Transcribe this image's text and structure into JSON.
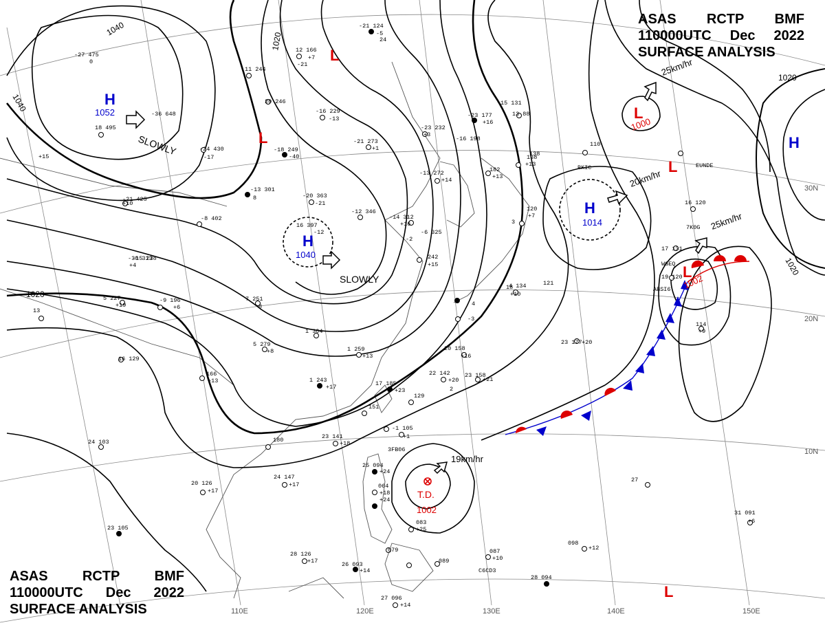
{
  "header": {
    "center1": "ASAS",
    "center2": "RCTP",
    "center3": "BMF",
    "time": "110000UTC",
    "month": "Dec",
    "year": "2022",
    "title": "SURFACE ANALYSIS"
  },
  "colors": {
    "high": "#0000cc",
    "low": "#dd0000",
    "isobar": "#000000",
    "coast": "#555555",
    "grid": "#888888"
  },
  "isobar_labels": {
    "a": "1040",
    "b": "1040",
    "c": "1020",
    "d": "1020",
    "e": "1020",
    "f": "1020"
  },
  "lat_labels": {
    "l30": "30N",
    "l20": "20N",
    "l10": "10N"
  },
  "lon_labels": {
    "e110": "110E",
    "e120": "120E",
    "e130": "130E",
    "e140": "140E",
    "e150": "150E"
  },
  "systems": {
    "high_mongolia": {
      "symbol": "H",
      "pressure": "1052"
    },
    "high_china": {
      "symbol": "H",
      "pressure": "1040"
    },
    "high_pacific": {
      "symbol": "H",
      "pressure": "1014"
    },
    "high_east": {
      "symbol": "H"
    },
    "low_north_a": {
      "symbol": "L"
    },
    "low_north_b": {
      "symbol": "L"
    },
    "low_ne": {
      "symbol": "L",
      "pressure": "1000"
    },
    "low_east": {
      "symbol": "L"
    },
    "low_front": {
      "symbol": "L",
      "pressure": "1002"
    },
    "low_south": {
      "symbol": "L"
    },
    "td": {
      "symbol": "T.D.",
      "pressure": "1002"
    }
  },
  "motion": {
    "m1": "SLOWLY",
    "m2": "SLOWLY",
    "m3": "25km/hr",
    "m4": "20km/hr",
    "m5": "25km/hr",
    "m6": "19km/hr"
  },
  "stations": [
    "-21 124",
    "-5",
    "12 166",
    "+7",
    "-21",
    "0",
    "11 244",
    "20 246",
    "-16 229",
    "-13",
    "-23 232",
    "+3",
    "-16 198",
    "-23 177",
    "+16",
    "15 131",
    "13 88",
    "110",
    "-18 249",
    "-40",
    "-21 273",
    "+1",
    "-36 648",
    "-24 430",
    "-13 301",
    "-20 363",
    "-21",
    "-12 346",
    "-14 312",
    "+16",
    "-8 402",
    "16 397",
    "-12",
    "182",
    "+13",
    "138",
    "+13",
    "-13 272",
    "+14",
    "3",
    "-6 325",
    "242",
    "+15",
    "120",
    "+7",
    "-9 196",
    "+6",
    "5 227",
    "+19",
    "-15 238",
    "7 251",
    "8",
    "1 304",
    "13",
    "16 129",
    "1 259",
    "+13",
    "5 279",
    "+8",
    "18",
    "121",
    "4 134",
    "+10",
    "20 158",
    "+16",
    "23 177",
    "+20",
    "166",
    "+13",
    "1 243",
    "+17",
    "22 142",
    "+20",
    "23 158",
    "+21",
    "17 185",
    "+23",
    "129",
    "151",
    "23 141",
    "+18",
    "180",
    "-1 105",
    "24 103",
    "24 147",
    "+17",
    "20 126",
    "+17",
    "25 094",
    "+24",
    "064",
    "+18",
    "+24",
    "3FB06",
    "083",
    "+25",
    "079",
    "089",
    "087",
    "+10",
    "098",
    "+12",
    "27",
    "31 091",
    "+6",
    "28 126",
    "+17",
    "26 093",
    "+14",
    "27 096",
    "+14",
    "28 094",
    "23 105",
    "114",
    "+9",
    "138",
    "C6CD3",
    "BKIC",
    "EUNDE",
    "7K0G",
    "WGEQ",
    "ABSI6",
    "16 120",
    "17 131",
    "19 120",
    "18 495",
    "-27 475",
    "-21 425",
    "-30 313",
    "+15",
    "+10",
    "+4",
    "-17",
    "8",
    "-2",
    "4",
    "2",
    "24",
    "+1",
    "-3"
  ]
}
